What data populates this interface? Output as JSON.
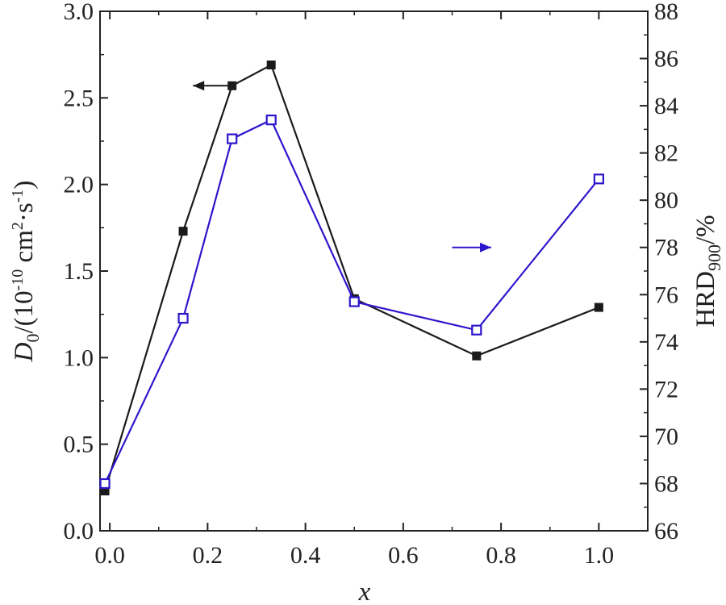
{
  "chart_data": {
    "type": "line",
    "xlabel": "x",
    "ylabel_left": {
      "main": "D",
      "main_sub": "0",
      "pre": "/(10",
      "exp1": "-10",
      "mid": " cm",
      "exp2": "2",
      "dot": "·s",
      "exp3": "-1",
      "close": ")"
    },
    "ylabel_right": {
      "main": "HRD",
      "sub": "900",
      "rest": "/%"
    },
    "xlim": [
      -0.02,
      1.1
    ],
    "ylim_left": [
      0,
      3.0
    ],
    "ylim_right": [
      66,
      88
    ],
    "x_ticks": [
      "0.0",
      "0.2",
      "0.4",
      "0.6",
      "0.8",
      "1.0"
    ],
    "y_left_ticks": [
      "0.0",
      "0.5",
      "1.0",
      "1.5",
      "2.0",
      "2.5",
      "3.0"
    ],
    "y_right_ticks": [
      "66",
      "68",
      "70",
      "72",
      "74",
      "76",
      "78",
      "80",
      "82",
      "84",
      "86",
      "88"
    ],
    "series": [
      {
        "axis": "left",
        "color": "#1a1a1a",
        "marker": "filled-square",
        "x": [
          -0.01,
          0.15,
          0.25,
          0.33,
          0.5,
          0.75,
          1.0
        ],
        "y": [
          0.23,
          1.73,
          2.57,
          2.69,
          1.34,
          1.01,
          1.29
        ]
      },
      {
        "axis": "right",
        "color": "#2d16cc",
        "marker": "open-square",
        "x": [
          -0.01,
          0.15,
          0.25,
          0.33,
          0.5,
          0.75,
          1.0
        ],
        "y": [
          68.0,
          75.0,
          82.6,
          83.4,
          75.7,
          74.5,
          80.9
        ]
      }
    ],
    "annotations": [
      {
        "type": "arrow",
        "direction": "left",
        "color": "#1a1a1a",
        "x_from": 0.25,
        "x_to": 0.17,
        "y": 2.57,
        "axis": "left"
      },
      {
        "type": "arrow",
        "direction": "right",
        "color": "#2d16cc",
        "x_from": 0.7,
        "x_to": 0.78,
        "y": 78.0,
        "axis": "right"
      }
    ]
  }
}
